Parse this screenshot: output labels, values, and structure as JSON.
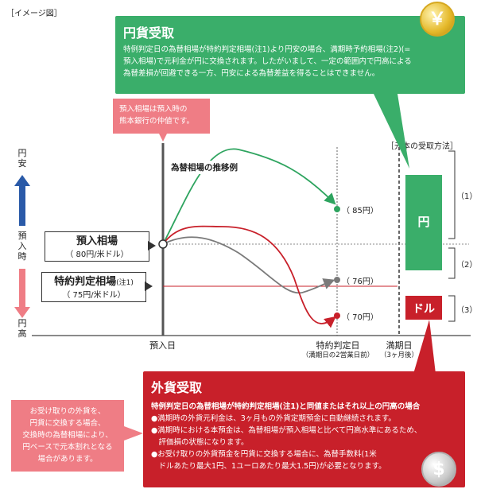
{
  "image_label": "［イメージ図］",
  "green_box": {
    "title": "円貨受取",
    "lines": [
      "特例判定日の為替相場が特約判定相場(注1)より円安の場合、満期時予約相場(注2)(=",
      "預入相場)で元利金が円に交換されます。したがいまして、一定の範囲内で円高による",
      "為替差損が回避できる一方、円安による為替差益を得ることはできません。"
    ]
  },
  "pink_note": {
    "lines": [
      "預入相場は預入時の",
      "熊本銀行の仲値です。"
    ]
  },
  "chart_title": "為替相場の推移例",
  "y_axis": {
    "top": [
      "円",
      "安"
    ],
    "middle": [
      "預",
      "入",
      "時"
    ],
    "bottom": [
      "円",
      "高"
    ]
  },
  "deposit_box": {
    "title": "預入相場",
    "sub": "（ 80円/米ドル）"
  },
  "special_box": {
    "title": "特約判定相場",
    "note": "(注1)",
    "sub": "（ 75円/米ドル）"
  },
  "points": [
    {
      "label": "（ 85円）",
      "color": "#2ea45f"
    },
    {
      "label": "（ 76円）",
      "color": "#7a7a7a"
    },
    {
      "label": "（ 70円）",
      "color": "#c8202a"
    }
  ],
  "x_axis": {
    "deposit_day": "預入日",
    "judge_day": "特約判定日",
    "judge_note": "（満期日の2営業日前）",
    "maturity_day": "満期日",
    "maturity_note": "（3ヶ月後）"
  },
  "method_label": "［元本の受取方法］",
  "yen_block": "円",
  "dollar_block": "ドル",
  "brackets": [
    "（1）",
    "（2）",
    "（3）"
  ],
  "red_box": {
    "title": "外貨受取",
    "lead": "特例判定日の為替相場が特約判定相場(注1)と同値またはそれ以上の円高の場合",
    "lines": [
      "●満期時の外貨元利金は、3ヶ月もの外貨定期預金に自動継続されます。",
      "●満期時における本預金は、為替相場が預入相場と比べて円高水準にあるため、",
      "　評価損の状態になります。",
      "●お受け取りの外貨預金を円貨に交換する場合に、為替手数料(1米",
      "　ドルあたり最大1円、1ユーロあたり最大1.5円)が必要となります。"
    ]
  },
  "pink_left": {
    "lines": [
      "お受け取りの外貨を、",
      "円貨に交換する場合、",
      "交換時の為替相場により、",
      "円ベースで元本割れとなる",
      "場合があります。"
    ]
  },
  "coins": {
    "yen": "￥",
    "dollar": "$"
  },
  "colors": {
    "green": "#3aae6a",
    "red": "#c8202a",
    "pink": "#ef7d85",
    "blue": "#2a5aa8",
    "gray": "#7a7a7a"
  }
}
